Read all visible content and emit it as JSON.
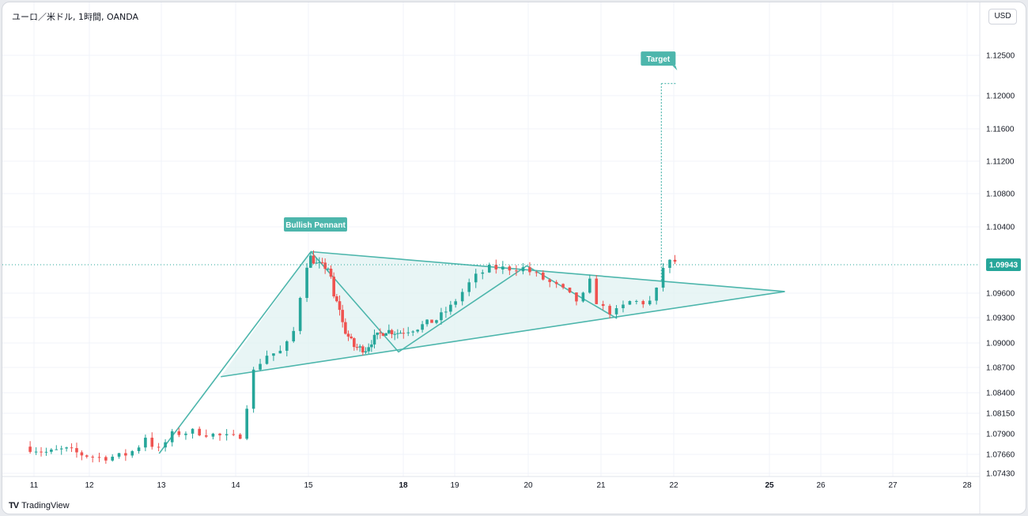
{
  "header": {
    "symbol": "ユーロ／米ドル, 1時間, OANDA",
    "currency_button": "USD"
  },
  "footer": {
    "brand_logo": "TV",
    "brand_name": "TradingView"
  },
  "colors": {
    "up": "#26a69a",
    "down": "#ef5350",
    "pattern": "#4db6ac",
    "pattern_fill": "#e0f2f1",
    "grid": "#f0f3fa"
  },
  "chart_data": {
    "type": "candlestick",
    "title": "ユーロ／米ドル, 1時間, OANDA",
    "y_ticks": [
      "1.12500",
      "1.12000",
      "1.11600",
      "1.11200",
      "1.10800",
      "1.10400",
      "1.09600",
      "1.09300",
      "1.09000",
      "1.08700",
      "1.08400",
      "1.08150",
      "1.07900",
      "1.07660",
      "1.07430"
    ],
    "ylim": [
      1.0743,
      1.13
    ],
    "x_ticks": [
      {
        "label": "11",
        "day": 11,
        "bold": false
      },
      {
        "label": "12",
        "day": 12,
        "bold": false
      },
      {
        "label": "13",
        "day": 13,
        "bold": false
      },
      {
        "label": "14",
        "day": 14,
        "bold": false
      },
      {
        "label": "15",
        "day": 15,
        "bold": false
      },
      {
        "label": "18",
        "day": 18,
        "bold": true
      },
      {
        "label": "19",
        "day": 19,
        "bold": false
      },
      {
        "label": "20",
        "day": 20,
        "bold": false
      },
      {
        "label": "21",
        "day": 21,
        "bold": false
      },
      {
        "label": "22",
        "day": 22,
        "bold": false
      },
      {
        "label": "25",
        "day": 25,
        "bold": true
      },
      {
        "label": "26",
        "day": 26,
        "bold": false
      },
      {
        "label": "27",
        "day": 27,
        "bold": false
      },
      {
        "label": "28",
        "day": 28,
        "bold": false
      }
    ],
    "last_price": "1.09943",
    "last_price_value": 1.09943,
    "annotations": {
      "pattern_label": "Bullish Pennant",
      "target_label": "Target",
      "target_price": 1.1215,
      "pennant_points": [
        {
          "day": 12.97,
          "price": 1.0767
        },
        {
          "day": 15.08,
          "price": 1.101
        },
        {
          "day": 17.85,
          "price": 1.0889
        },
        {
          "day": 19.98,
          "price": 1.0993
        },
        {
          "day": 21.22,
          "price": 1.0929
        }
      ],
      "upper_line": [
        {
          "day": 15.08,
          "price": 1.101
        },
        {
          "day": 25.3,
          "price": 1.0962
        }
      ],
      "lower_line": [
        {
          "day": 13.8,
          "price": 1.0859
        },
        {
          "day": 25.3,
          "price": 1.0962
        }
      ]
    },
    "anchors": [
      [
        10.9,
        1.0775
      ],
      [
        11.3,
        1.0768
      ],
      [
        11.6,
        1.0772
      ],
      [
        11.9,
        1.0766
      ],
      [
        12.2,
        1.0762
      ],
      [
        12.5,
        1.0764
      ],
      [
        12.7,
        1.0772
      ],
      [
        12.85,
        1.079
      ],
      [
        12.97,
        1.0767
      ],
      [
        13.2,
        1.079
      ],
      [
        13.5,
        1.0793
      ],
      [
        13.8,
        1.0788
      ],
      [
        14.0,
        1.0785
      ],
      [
        14.15,
        1.079
      ],
      [
        14.25,
        1.086
      ],
      [
        14.45,
        1.0885
      ],
      [
        14.7,
        1.089
      ],
      [
        14.85,
        1.0915
      ],
      [
        15.0,
        1.099
      ],
      [
        15.08,
        1.1005
      ],
      [
        15.3,
        1.0995
      ],
      [
        15.7,
        1.099
      ],
      [
        15.85,
        1.0955
      ],
      [
        16.05,
        1.094
      ],
      [
        16.15,
        1.0918
      ],
      [
        16.5,
        1.0895
      ],
      [
        16.85,
        1.0892
      ],
      [
        17.1,
        1.0905
      ],
      [
        17.5,
        1.0915
      ],
      [
        17.9,
        1.0912
      ],
      [
        18.3,
        1.0918
      ],
      [
        18.7,
        1.0928
      ],
      [
        19.0,
        1.0945
      ],
      [
        19.3,
        1.0978
      ],
      [
        19.5,
        1.099
      ],
      [
        19.98,
        1.099
      ],
      [
        20.5,
        1.0965
      ],
      [
        20.75,
        1.0948
      ],
      [
        20.9,
        1.0975
      ],
      [
        21.0,
        1.0945
      ],
      [
        21.22,
        1.0935
      ],
      [
        21.45,
        1.095
      ],
      [
        21.7,
        1.0948
      ],
      [
        21.8,
        1.0958
      ],
      [
        21.85,
        1.0988
      ],
      [
        22.0,
        1.0998
      ]
    ]
  }
}
